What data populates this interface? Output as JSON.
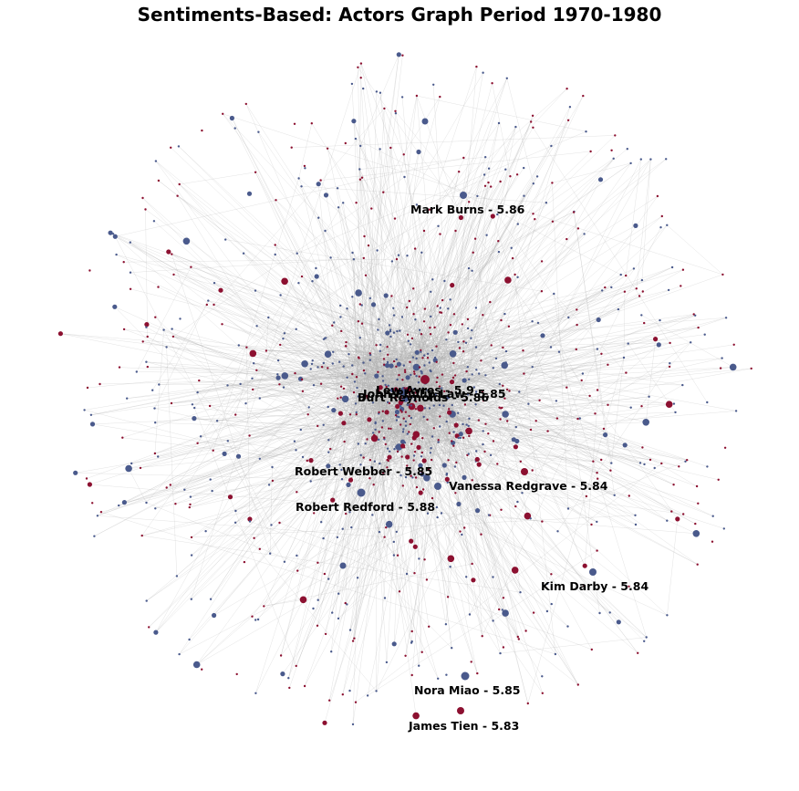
{
  "title": "Sentiments-Based: Actors Graph Period 1970-1980",
  "colors": {
    "positive_node": "#4a5a8c",
    "negative_node": "#8c1030",
    "edge": "#b0b0b0",
    "label": "#000000"
  },
  "labeled_actors": [
    {
      "name": "Mark Burns - 5.86"
    },
    {
      "name": "Lew Ayres - 5.9"
    },
    {
      "name": "John Phillip Law - 5.85"
    },
    {
      "name": "Burt Reynolds - 5.86"
    },
    {
      "name": "Robert Webber - 5.85"
    },
    {
      "name": "Vanessa Redgrave - 5.84"
    },
    {
      "name": "Robert Redford - 5.88"
    },
    {
      "name": "Kim Darby - 5.84"
    },
    {
      "name": "Nora Miao - 5.85"
    },
    {
      "name": "James Tien - 5.83"
    }
  ]
}
